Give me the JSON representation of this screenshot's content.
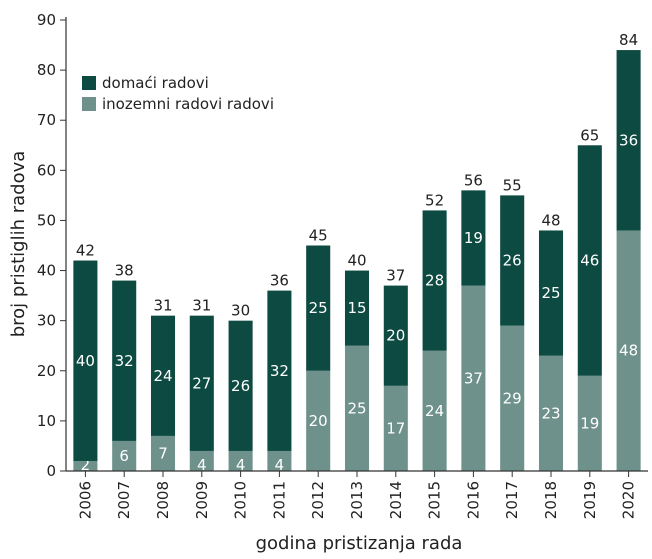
{
  "chart_data": {
    "type": "bar",
    "stacked": true,
    "categories": [
      "2006",
      "2007",
      "2008",
      "2009",
      "2010",
      "2011",
      "2012",
      "2013",
      "2014",
      "2015",
      "2016",
      "2017",
      "2018",
      "2019",
      "2020"
    ],
    "series": [
      {
        "name": "inozemni radovi radovi",
        "color": "#6e918b",
        "values": [
          2,
          6,
          7,
          4,
          4,
          4,
          20,
          25,
          17,
          24,
          37,
          29,
          23,
          19,
          48
        ]
      },
      {
        "name": "domaći radovi",
        "color": "#0c4a42",
        "values": [
          40,
          32,
          24,
          27,
          26,
          32,
          25,
          15,
          20,
          28,
          19,
          26,
          25,
          46,
          36
        ]
      }
    ],
    "totals": [
      42,
      38,
      31,
      31,
      30,
      36,
      45,
      40,
      37,
      52,
      56,
      55,
      48,
      65,
      84
    ],
    "xlabel": "godina pristizanja rada",
    "ylabel": "broj pristiglih radova",
    "ylim": [
      0,
      90
    ],
    "yticks": [
      0,
      10,
      20,
      30,
      40,
      50,
      60,
      70,
      80,
      90
    ],
    "legend": {
      "position": "top-left",
      "order": [
        "domaći radovi",
        "inozemni radovi radovi"
      ]
    },
    "grid": false
  }
}
